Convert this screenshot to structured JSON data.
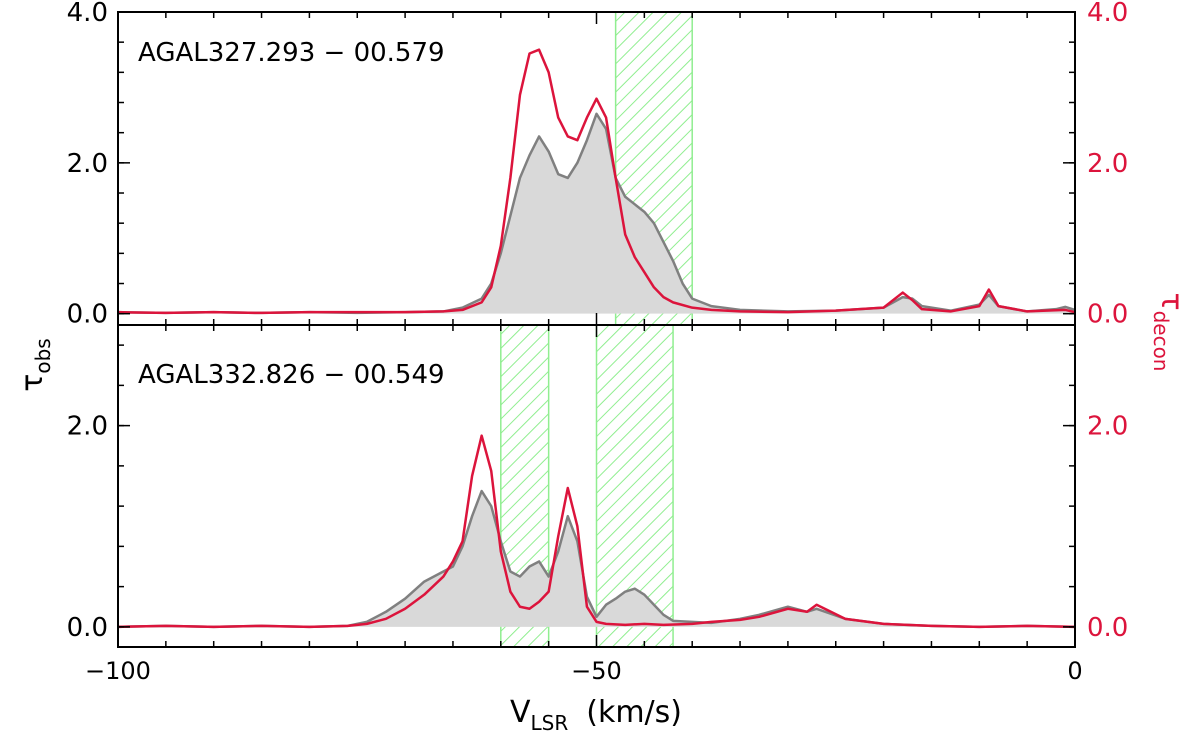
{
  "figure": {
    "xlabel_main": "V",
    "xlabel_sub": "LSR",
    "xlabel_unit": "(km/s)",
    "ylabel_left_main": "τ",
    "ylabel_left_sub": "obs",
    "ylabel_right_main": "τ",
    "ylabel_right_sub": "decon"
  },
  "colors": {
    "obs_line": "#808080",
    "obs_fill": "#d9d9d9",
    "decon_line": "#dc143c",
    "band": "#90ee90",
    "axis": "#000000"
  },
  "chart_data": [
    {
      "type": "line",
      "title": "AGAL327.293 − 00.579",
      "xlim": [
        -100,
        0
      ],
      "ylim": [
        -0.15,
        4.0
      ],
      "xticks": [
        -100,
        -50,
        0
      ],
      "left_ticks": [
        0.0,
        2.0,
        4.0
      ],
      "left_tick_labels": [
        "0.0",
        "2.0",
        "4.0"
      ],
      "right_ticks": [
        0.0,
        2.0,
        4.0
      ],
      "right_tick_labels": [
        "0.0",
        "2.0",
        "4.0"
      ],
      "x_tick_labels": [],
      "shaded_ranges": [
        [
          -48,
          -40
        ]
      ],
      "series": [
        {
          "key": "obs",
          "style": "filled-line",
          "points": [
            [
              -100,
              0.02
            ],
            [
              -95,
              0.01
            ],
            [
              -90,
              0.02
            ],
            [
              -85,
              0.01
            ],
            [
              -80,
              0.02
            ],
            [
              -75,
              0.01
            ],
            [
              -70,
              0.02
            ],
            [
              -66,
              0.03
            ],
            [
              -64,
              0.08
            ],
            [
              -62,
              0.2
            ],
            [
              -61,
              0.4
            ],
            [
              -60,
              0.8
            ],
            [
              -59,
              1.3
            ],
            [
              -58,
              1.8
            ],
            [
              -57,
              2.1
            ],
            [
              -56,
              2.35
            ],
            [
              -55,
              2.15
            ],
            [
              -54,
              1.85
            ],
            [
              -53,
              1.8
            ],
            [
              -52,
              2.0
            ],
            [
              -51,
              2.3
            ],
            [
              -50,
              2.65
            ],
            [
              -49,
              2.45
            ],
            [
              -48,
              1.8
            ],
            [
              -47,
              1.55
            ],
            [
              -46,
              1.45
            ],
            [
              -45,
              1.35
            ],
            [
              -44,
              1.2
            ],
            [
              -43,
              0.95
            ],
            [
              -42,
              0.7
            ],
            [
              -41,
              0.4
            ],
            [
              -40,
              0.2
            ],
            [
              -38,
              0.1
            ],
            [
              -35,
              0.05
            ],
            [
              -30,
              0.03
            ],
            [
              -25,
              0.04
            ],
            [
              -20,
              0.08
            ],
            [
              -18,
              0.22
            ],
            [
              -17,
              0.2
            ],
            [
              -16,
              0.1
            ],
            [
              -13,
              0.04
            ],
            [
              -10,
              0.12
            ],
            [
              -9,
              0.25
            ],
            [
              -8,
              0.1
            ],
            [
              -5,
              0.03
            ],
            [
              -2,
              0.06
            ],
            [
              -1,
              0.09
            ],
            [
              0,
              0.05
            ]
          ]
        },
        {
          "key": "decon",
          "style": "line",
          "points": [
            [
              -100,
              0.02
            ],
            [
              -95,
              0.01
            ],
            [
              -90,
              0.02
            ],
            [
              -85,
              0.01
            ],
            [
              -80,
              0.02
            ],
            [
              -75,
              0.02
            ],
            [
              -70,
              0.02
            ],
            [
              -66,
              0.03
            ],
            [
              -64,
              0.05
            ],
            [
              -62,
              0.15
            ],
            [
              -61,
              0.35
            ],
            [
              -60,
              0.9
            ],
            [
              -59,
              1.8
            ],
            [
              -58,
              2.9
            ],
            [
              -57,
              3.45
            ],
            [
              -56,
              3.5
            ],
            [
              -55,
              3.2
            ],
            [
              -54,
              2.6
            ],
            [
              -53,
              2.35
            ],
            [
              -52,
              2.3
            ],
            [
              -51,
              2.6
            ],
            [
              -50,
              2.85
            ],
            [
              -49,
              2.6
            ],
            [
              -48,
              1.8
            ],
            [
              -47,
              1.05
            ],
            [
              -46,
              0.75
            ],
            [
              -45,
              0.55
            ],
            [
              -44,
              0.35
            ],
            [
              -43,
              0.22
            ],
            [
              -42,
              0.15
            ],
            [
              -40,
              0.08
            ],
            [
              -38,
              0.05
            ],
            [
              -35,
              0.03
            ],
            [
              -30,
              0.02
            ],
            [
              -25,
              0.04
            ],
            [
              -20,
              0.08
            ],
            [
              -18,
              0.28
            ],
            [
              -17,
              0.18
            ],
            [
              -16,
              0.06
            ],
            [
              -13,
              0.03
            ],
            [
              -10,
              0.1
            ],
            [
              -9,
              0.32
            ],
            [
              -8,
              0.1
            ],
            [
              -5,
              0.03
            ],
            [
              -1,
              0.05
            ],
            [
              0,
              0.02
            ]
          ]
        }
      ]
    },
    {
      "type": "line",
      "title": "AGAL332.826 − 00.549",
      "xlim": [
        -100,
        0
      ],
      "ylim": [
        -0.2,
        3.0
      ],
      "xticks": [
        -100,
        -50,
        0
      ],
      "left_ticks": [
        0.0,
        2.0
      ],
      "left_tick_labels": [
        "0.0",
        "2.0"
      ],
      "right_ticks": [
        0.0,
        2.0
      ],
      "right_tick_labels": [
        "0.0",
        "2.0"
      ],
      "x_tick_labels": [
        "−100",
        "−50",
        "0"
      ],
      "shaded_ranges": [
        [
          -60,
          -55
        ],
        [
          -50,
          -42
        ]
      ],
      "series": [
        {
          "key": "obs",
          "style": "filled-line",
          "points": [
            [
              -100,
              0.0
            ],
            [
              -95,
              0.01
            ],
            [
              -90,
              0.0
            ],
            [
              -85,
              0.01
            ],
            [
              -80,
              0.0
            ],
            [
              -76,
              0.01
            ],
            [
              -74,
              0.05
            ],
            [
              -72,
              0.15
            ],
            [
              -70,
              0.28
            ],
            [
              -68,
              0.45
            ],
            [
              -66,
              0.55
            ],
            [
              -65,
              0.6
            ],
            [
              -64,
              0.8
            ],
            [
              -63,
              1.1
            ],
            [
              -62,
              1.35
            ],
            [
              -61,
              1.2
            ],
            [
              -60,
              0.85
            ],
            [
              -59,
              0.55
            ],
            [
              -58,
              0.5
            ],
            [
              -57,
              0.6
            ],
            [
              -56,
              0.65
            ],
            [
              -55,
              0.5
            ],
            [
              -54,
              0.75
            ],
            [
              -53,
              1.1
            ],
            [
              -52,
              0.85
            ],
            [
              -51,
              0.3
            ],
            [
              -50,
              0.1
            ],
            [
              -49,
              0.22
            ],
            [
              -48,
              0.28
            ],
            [
              -47,
              0.35
            ],
            [
              -46,
              0.38
            ],
            [
              -45,
              0.32
            ],
            [
              -44,
              0.22
            ],
            [
              -43,
              0.12
            ],
            [
              -42,
              0.06
            ],
            [
              -40,
              0.05
            ],
            [
              -38,
              0.04
            ],
            [
              -35,
              0.08
            ],
            [
              -33,
              0.12
            ],
            [
              -30,
              0.2
            ],
            [
              -28,
              0.15
            ],
            [
              -27,
              0.18
            ],
            [
              -24,
              0.08
            ],
            [
              -20,
              0.03
            ],
            [
              -15,
              0.01
            ],
            [
              -10,
              0.0
            ],
            [
              -5,
              0.01
            ],
            [
              0,
              0.0
            ]
          ]
        },
        {
          "key": "decon",
          "style": "line",
          "points": [
            [
              -100,
              0.0
            ],
            [
              -95,
              0.01
            ],
            [
              -90,
              0.0
            ],
            [
              -85,
              0.01
            ],
            [
              -80,
              0.0
            ],
            [
              -76,
              0.01
            ],
            [
              -74,
              0.03
            ],
            [
              -72,
              0.08
            ],
            [
              -70,
              0.18
            ],
            [
              -68,
              0.32
            ],
            [
              -66,
              0.5
            ],
            [
              -65,
              0.65
            ],
            [
              -64,
              0.85
            ],
            [
              -63,
              1.5
            ],
            [
              -62,
              1.9
            ],
            [
              -61,
              1.55
            ],
            [
              -60,
              0.75
            ],
            [
              -59,
              0.35
            ],
            [
              -58,
              0.2
            ],
            [
              -57,
              0.18
            ],
            [
              -56,
              0.25
            ],
            [
              -55,
              0.35
            ],
            [
              -54,
              0.9
            ],
            [
              -53,
              1.38
            ],
            [
              -52,
              1.0
            ],
            [
              -51,
              0.2
            ],
            [
              -50,
              0.05
            ],
            [
              -49,
              0.03
            ],
            [
              -47,
              0.02
            ],
            [
              -45,
              0.03
            ],
            [
              -43,
              0.02
            ],
            [
              -40,
              0.03
            ],
            [
              -38,
              0.05
            ],
            [
              -35,
              0.07
            ],
            [
              -33,
              0.1
            ],
            [
              -30,
              0.18
            ],
            [
              -28,
              0.15
            ],
            [
              -27,
              0.22
            ],
            [
              -24,
              0.08
            ],
            [
              -20,
              0.03
            ],
            [
              -15,
              0.01
            ],
            [
              -10,
              0.0
            ],
            [
              -5,
              0.01
            ],
            [
              0,
              0.0
            ]
          ]
        }
      ]
    }
  ]
}
